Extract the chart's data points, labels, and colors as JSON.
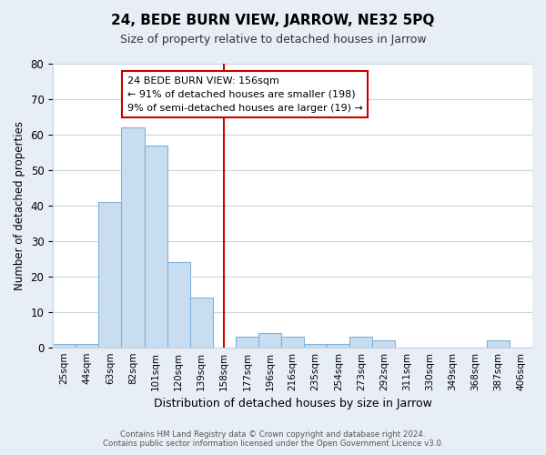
{
  "title": "24, BEDE BURN VIEW, JARROW, NE32 5PQ",
  "subtitle": "Size of property relative to detached houses in Jarrow",
  "xlabel": "Distribution of detached houses by size in Jarrow",
  "ylabel": "Number of detached properties",
  "footer_line1": "Contains HM Land Registry data © Crown copyright and database right 2024.",
  "footer_line2": "Contains public sector information licensed under the Open Government Licence v3.0.",
  "bin_labels": [
    "25sqm",
    "44sqm",
    "63sqm",
    "82sqm",
    "101sqm",
    "120sqm",
    "139sqm",
    "158sqm",
    "177sqm",
    "196sqm",
    "216sqm",
    "235sqm",
    "254sqm",
    "273sqm",
    "292sqm",
    "311sqm",
    "330sqm",
    "349sqm",
    "368sqm",
    "387sqm",
    "406sqm"
  ],
  "bar_values": [
    1,
    1,
    41,
    62,
    57,
    24,
    14,
    0,
    3,
    4,
    3,
    1,
    1,
    3,
    2,
    0,
    0,
    0,
    0,
    2,
    0
  ],
  "bar_color": "#c9ddf0",
  "bar_edge_color": "#7fb3d9",
  "reference_line_x_label": "158sqm",
  "reference_line_color": "#cc0000",
  "annotation_title": "24 BEDE BURN VIEW: 156sqm",
  "annotation_line1": "← 91% of detached houses are smaller (198)",
  "annotation_line2": "9% of semi-detached houses are larger (19) →",
  "annotation_box_color": "#ffffff",
  "annotation_box_edge_color": "#cc0000",
  "ylim": [
    0,
    80
  ],
  "yticks": [
    0,
    10,
    20,
    30,
    40,
    50,
    60,
    70,
    80
  ],
  "background_color": "#e8eef5",
  "plot_background_color": "#ffffff",
  "grid_color": "#c8d4e0"
}
